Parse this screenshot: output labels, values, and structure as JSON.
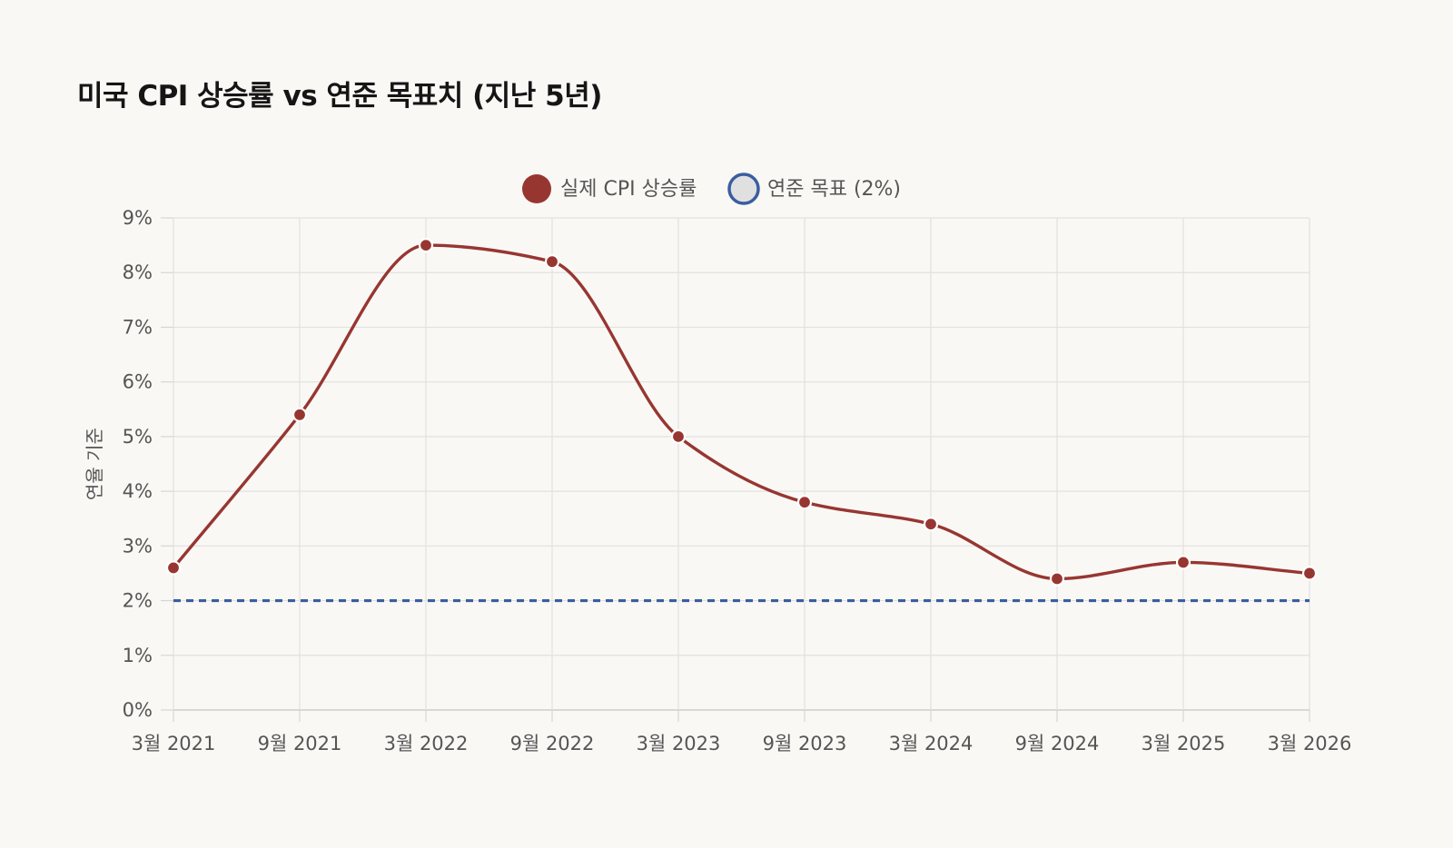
{
  "title": "미국 CPI 상승률 vs 연준 목표치 (지난 5년)",
  "chart_data": {
    "type": "line",
    "title": "미국 CPI 상승률 vs 연준 목표치 (지난 5년)",
    "categories": [
      "3월 2021",
      "9월 2021",
      "3월 2022",
      "9월 2022",
      "3월 2023",
      "9월 2023",
      "3월 2024",
      "9월 2024",
      "3월 2025",
      "3월 2026"
    ],
    "series": [
      {
        "name": "실제 CPI 상승률",
        "values": [
          2.6,
          5.4,
          8.5,
          8.2,
          5.0,
          3.8,
          3.4,
          2.4,
          2.7,
          2.5
        ],
        "color": "#973631",
        "style": "smooth"
      },
      {
        "name": "연준 목표 (2%)",
        "values": [
          2,
          2,
          2,
          2,
          2,
          2,
          2,
          2,
          2,
          2
        ],
        "color": "#3a5d9f",
        "style": "dashed"
      }
    ],
    "xlabel": "",
    "ylabel": "연율 기준",
    "ylim": [
      0,
      9
    ],
    "yticks": [
      "0%",
      "1%",
      "2%",
      "3%",
      "4%",
      "5%",
      "6%",
      "7%",
      "8%",
      "9%"
    ],
    "grid": true,
    "legend": "top-center"
  }
}
